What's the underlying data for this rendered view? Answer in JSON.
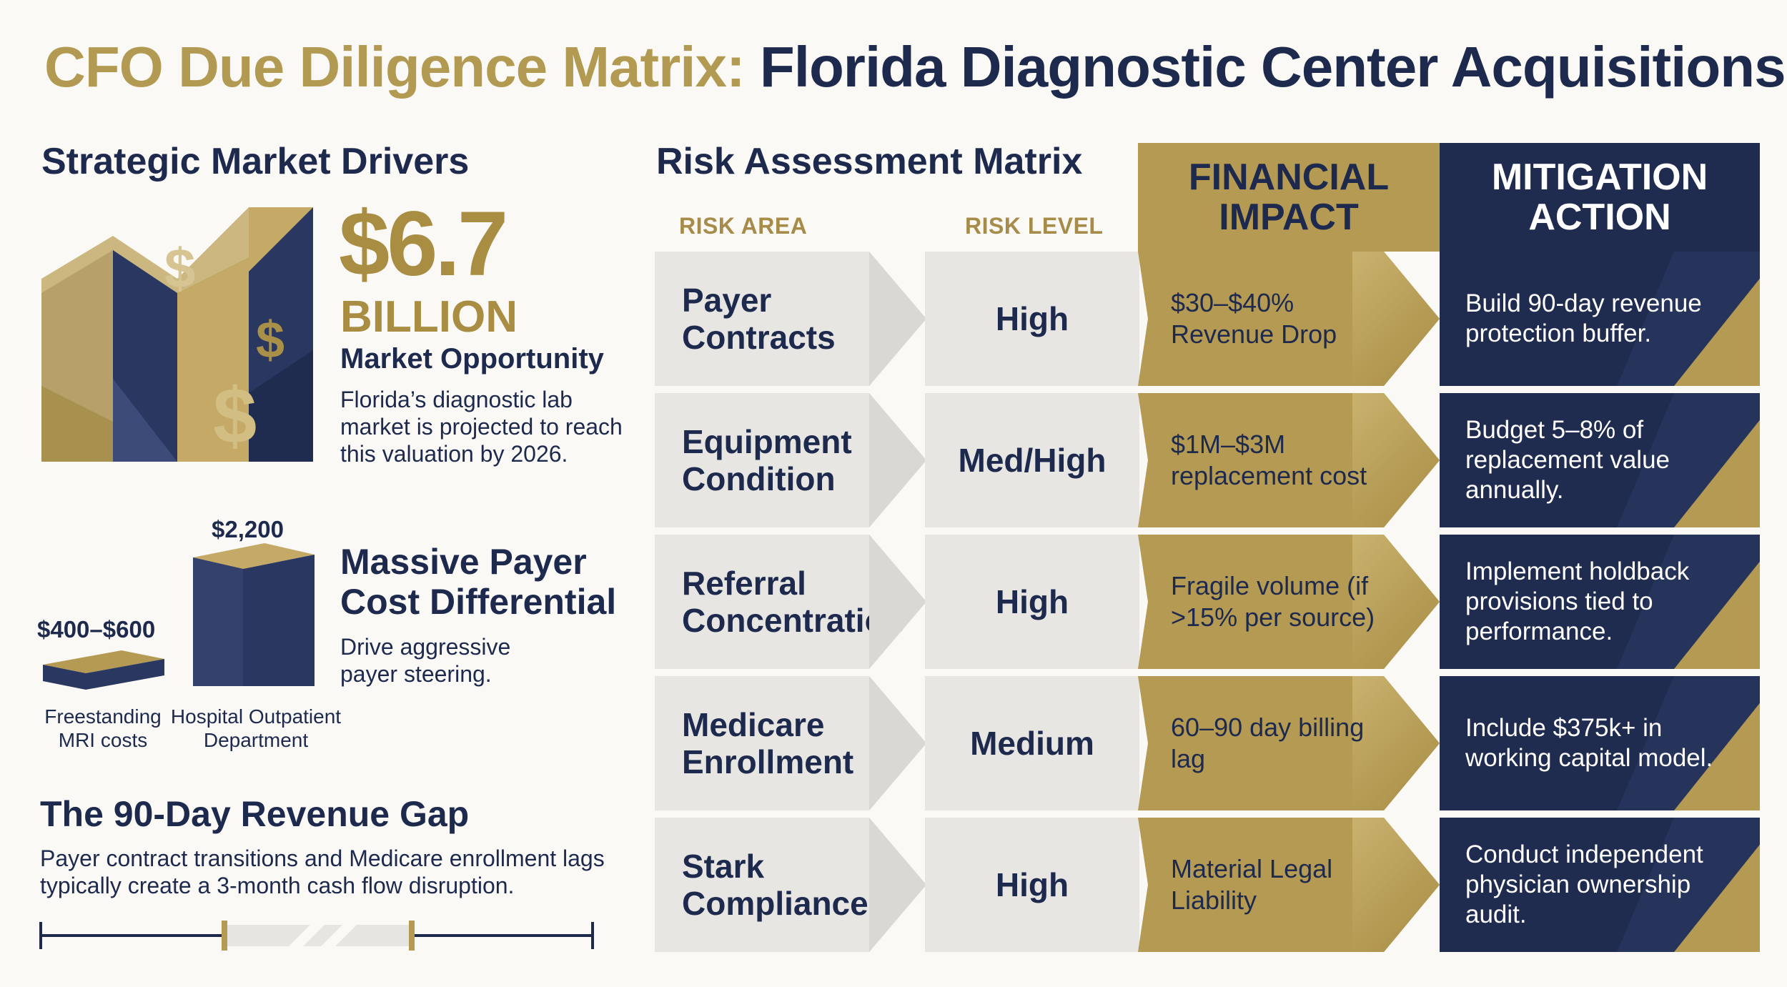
{
  "title": {
    "part1": "CFO Due Diligence Matrix:",
    "part2": "Florida Diagnostic Center Acquisitions"
  },
  "drivers": {
    "heading": "Strategic Market Drivers",
    "market": {
      "value": "$6.7",
      "unit": "BILLION",
      "label": "Market Opportunity",
      "description": "Florida’s diagnostic lab market is projected to reach this valuation by 2026."
    },
    "cost": {
      "freestanding_value": "$400–$600",
      "freestanding_caption": "Freestanding MRI costs",
      "hospital_value": "$2,200",
      "hospital_caption": "Hospital Outpatient Department",
      "heading": "Massive Payer Cost Differential",
      "description": "Drive aggressive payer steering."
    },
    "gap": {
      "heading": "The 90-Day Revenue Gap",
      "description": "Payer contract transitions and Medicare enrollment lags typically create a 3-month cash flow disruption."
    }
  },
  "matrix": {
    "heading": "Risk Assessment Matrix",
    "columns": {
      "area": "RISK AREA",
      "level": "RISK LEVEL",
      "impact": "FINANCIAL IMPACT",
      "mitigation": "MITIGATION ACTION"
    },
    "rows": [
      {
        "area": "Payer Contracts",
        "level": "High",
        "impact": "$30–$40% Revenue Drop",
        "mitigation": "Build 90-day revenue protection buffer."
      },
      {
        "area": "Equipment Condition",
        "level": "Med/High",
        "impact": "$1M–$3M replacement cost",
        "mitigation": "Budget 5–8% of replacement value annually."
      },
      {
        "area": "Referral Concentration",
        "level": "High",
        "impact": "Fragile volume (if >15% per source)",
        "mitigation": "Implement holdback provisions tied to performance."
      },
      {
        "area": "Medicare Enrollment",
        "level": "Medium",
        "impact": "60–90 day billing lag",
        "mitigation": "Include $375k+ in working capital model."
      },
      {
        "area": "Stark Compliance",
        "level": "High",
        "impact": "Material Legal Liability",
        "mitigation": "Conduct independent physician ownership audit."
      }
    ]
  },
  "colors": {
    "navy": "#1d2a4d",
    "gold": "#b59a53",
    "light_gray": "#e7e6e3"
  }
}
